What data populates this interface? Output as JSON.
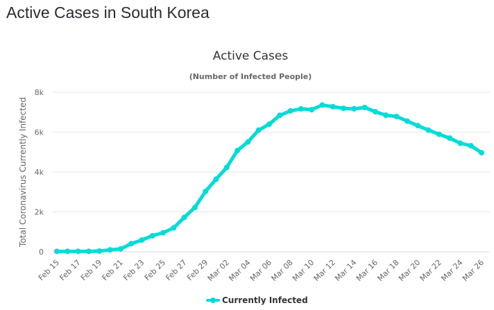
{
  "page": {
    "title": "Active Cases in South Korea"
  },
  "colors": {
    "series": "#00dcd8",
    "grid": "#e6e6e6",
    "axis": "#ccd6eb"
  },
  "chart_data": {
    "type": "line",
    "title": "Active Cases",
    "subtitle": "(Number of Infected People)",
    "xlabel": "",
    "ylabel": "Total Coronavirus Currently Infected",
    "ylim": [
      0,
      8000
    ],
    "yticks": [
      0,
      2000,
      4000,
      6000,
      8000
    ],
    "ytick_labels": [
      "0",
      "2k",
      "4k",
      "6k",
      "8k"
    ],
    "grid": true,
    "legend_position": "bottom-center",
    "x": [
      "Feb 15",
      "Feb 16",
      "Feb 17",
      "Feb 18",
      "Feb 19",
      "Feb 20",
      "Feb 21",
      "Feb 22",
      "Feb 23",
      "Feb 24",
      "Feb 25",
      "Feb 26",
      "Feb 27",
      "Feb 28",
      "Feb 29",
      "Mar 01",
      "Mar 02",
      "Mar 03",
      "Mar 04",
      "Mar 05",
      "Mar 06",
      "Mar 07",
      "Mar 08",
      "Mar 09",
      "Mar 10",
      "Mar 11",
      "Mar 12",
      "Mar 13",
      "Mar 14",
      "Mar 15",
      "Mar 16",
      "Mar 17",
      "Mar 18",
      "Mar 19",
      "Mar 20",
      "Mar 21",
      "Mar 22",
      "Mar 23",
      "Mar 24",
      "Mar 25",
      "Mar 26"
    ],
    "xtick_labels": [
      "Feb 15",
      "Feb 17",
      "Feb 19",
      "Feb 21",
      "Feb 23",
      "Feb 25",
      "Feb 27",
      "Feb 29",
      "Mar 02",
      "Mar 04",
      "Mar 06",
      "Mar 08",
      "Mar 10",
      "Mar 12",
      "Mar 14",
      "Mar 16",
      "Mar 18",
      "Mar 20",
      "Mar 22",
      "Mar 24",
      "Mar 26"
    ],
    "series": [
      {
        "name": "Currently Infected",
        "values": [
          19,
          20,
          21,
          21,
          36,
          94,
          140,
          405,
          586,
          802,
          953,
          1198,
          1722,
          2221,
          3026,
          3637,
          4229,
          5076,
          5508,
          6098,
          6397,
          6842,
          7066,
          7167,
          7126,
          7355,
          7275,
          7193,
          7168,
          7235,
          7023,
          6848,
          6781,
          6552,
          6325,
          6100,
          5893,
          5700,
          5442,
          5318,
          4966
        ]
      }
    ]
  }
}
